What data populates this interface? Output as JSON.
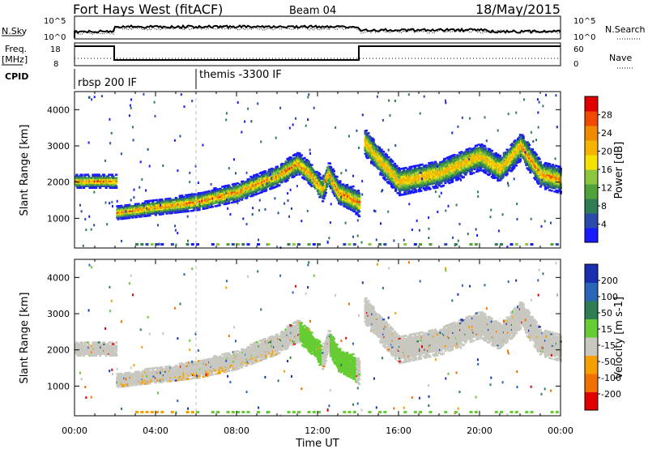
{
  "header": {
    "station": "Fort Hays West (fitACF)",
    "beam": "Beam 04",
    "date": "18/May/2015"
  },
  "summary_panel": {
    "left_labels": {
      "nsky": "N.Sky",
      "freq_line1": "Freq.",
      "freq_line2": "[MHz]",
      "cpid": "CPID"
    },
    "right_labels": {
      "nsearch": "N.Search",
      "nave": "Nave"
    },
    "nsky_ticks": [
      "10^5",
      "10^0"
    ],
    "nsearch_ticks": [
      "10^5",
      "10^0"
    ],
    "freq_ticks": [
      "18",
      "8"
    ],
    "nave_ticks": [
      "60",
      "0"
    ],
    "cpid_segments": [
      {
        "label": "rbsp 200 IF",
        "start_hour": 0,
        "end_hour": 6
      },
      {
        "label": "themis -3300 IF",
        "start_hour": 6,
        "end_hour": 24
      }
    ]
  },
  "chart_data": [
    {
      "type": "heatmap",
      "name": "power",
      "ylabel": "Slant Range [km]",
      "xlabel": "Time UT",
      "x_ticks": [
        "00:00",
        "04:00",
        "08:00",
        "12:00",
        "16:00",
        "20:00",
        "00:00"
      ],
      "x_range_hours": [
        0,
        24
      ],
      "y_ticks": [
        1000,
        2000,
        3000,
        4000
      ],
      "y_range_km": [
        180,
        4500
      ],
      "colorbar": {
        "label": "Power [dB]",
        "ticks": [
          "4",
          "8",
          "12",
          "16",
          "20",
          "24",
          "28"
        ],
        "range": [
          0,
          30
        ]
      },
      "colors": [
        "#1a1aff",
        "#2a4aaa",
        "#2e7d54",
        "#4fa23a",
        "#8cc63f",
        "#f5e000",
        "#f5b400",
        "#f08a00",
        "#f04a00",
        "#e00000"
      ],
      "backscatter_center_km": [
        [
          0,
          2000
        ],
        [
          2,
          2000
        ],
        [
          2.05,
          1130
        ],
        [
          4,
          1280
        ],
        [
          6,
          1430
        ],
        [
          8,
          1700
        ],
        [
          10,
          2150
        ],
        [
          11,
          2500
        ],
        [
          11.6,
          2200
        ],
        [
          12.2,
          1750
        ],
        [
          12.5,
          2220
        ],
        [
          13,
          1700
        ],
        [
          14,
          1420
        ],
        [
          14.3,
          3100
        ],
        [
          15,
          2600
        ],
        [
          16,
          2000
        ],
        [
          18,
          2230
        ],
        [
          20,
          2700
        ],
        [
          21,
          2350
        ],
        [
          22,
          2980
        ],
        [
          23,
          2200
        ],
        [
          24,
          2050
        ]
      ]
    },
    {
      "type": "heatmap",
      "name": "velocity",
      "ylabel": "Slant Range [km]",
      "xlabel": "Time UT",
      "x_ticks": [
        "00:00",
        "04:00",
        "08:00",
        "12:00",
        "16:00",
        "20:00",
        "00:00"
      ],
      "x_range_hours": [
        0,
        24
      ],
      "y_ticks": [
        1000,
        2000,
        3000,
        4000
      ],
      "y_range_km": [
        180,
        4500
      ],
      "colorbar": {
        "label": "Velocity [m s-1]",
        "ticks": [
          "200",
          "100",
          "50",
          "15",
          "-15",
          "-50",
          "-100",
          "-200"
        ]
      },
      "colors": [
        "#1a2fb0",
        "#2a66b8",
        "#2e7d54",
        "#66cc33",
        "#c8c8c0",
        "#f5a000",
        "#f07000",
        "#e00000"
      ],
      "ground_scatter_color": "#c8c8c0",
      "positive_velocity_regions_hours": [
        [
          11.1,
          12.2
        ],
        [
          12.6,
          13.9
        ]
      ]
    }
  ]
}
